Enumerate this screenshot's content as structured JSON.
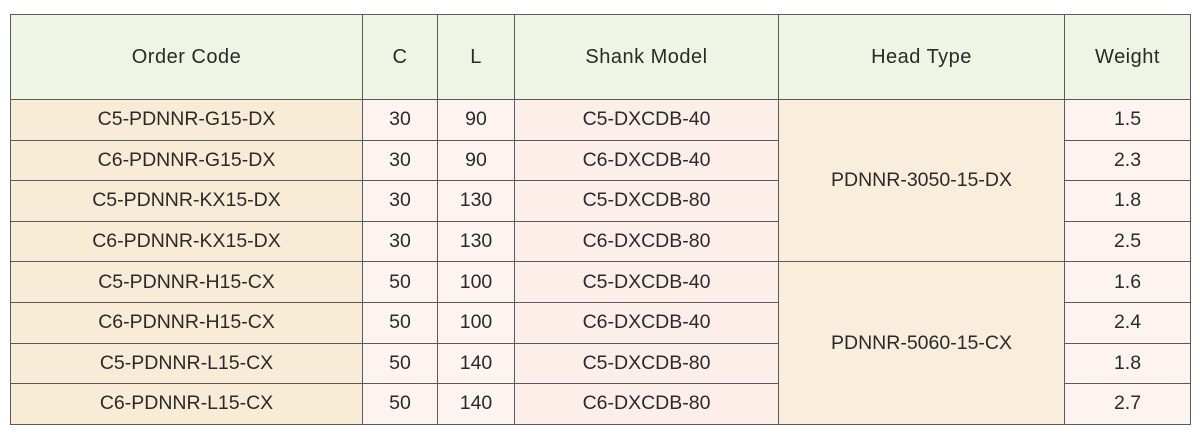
{
  "table": {
    "header": [
      "Order Code",
      "C",
      "L",
      "Shank Model",
      "Head Type",
      "Weight"
    ],
    "head_types": [
      "PDNNR-3050-15-DX",
      "PDNNR-5060-15-CX"
    ],
    "rows": [
      [
        "C5-PDNNR-G15-DX",
        30,
        90,
        "C5-DXCDB-40",
        1.5
      ],
      [
        "C6-PDNNR-G15-DX",
        30,
        90,
        "C6-DXCDB-40",
        2.3
      ],
      [
        "C5-PDNNR-KX15-DX",
        30,
        130,
        "C5-DXCDB-80",
        1.8
      ],
      [
        "C6-PDNNR-KX15-DX",
        30,
        130,
        "C6-DXCDB-80",
        2.5
      ],
      [
        "C5-PDNNR-H15-CX",
        50,
        100,
        "C5-DXCDB-40",
        1.6
      ],
      [
        "C6-PDNNR-H15-CX",
        50,
        100,
        "C6-DXCDB-40",
        2.4
      ],
      [
        "C5-PDNNR-L15-CX",
        50,
        140,
        "C5-DXCDB-80",
        1.8
      ],
      [
        "C6-PDNNR-L15-CX",
        50,
        140,
        "C6-DXCDB-80",
        2.7
      ]
    ]
  }
}
